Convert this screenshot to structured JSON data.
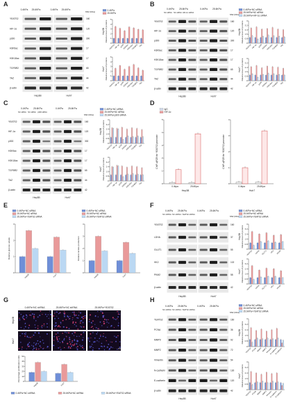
{
  "panel_labels": [
    "A",
    "B",
    "C",
    "D",
    "E",
    "F",
    "G",
    "H"
  ],
  "A": {
    "conditions": [
      "0.4KPa",
      "25.6KPa",
      "0.4KPa",
      "25.6KPa"
    ],
    "mw_label": "MW (KDa)",
    "rows": [
      "YEATS2",
      "HIF-1α",
      "p300",
      "H3K9ac",
      "H3K18ac",
      "TGFBR2",
      "TAZ",
      "β-actin"
    ],
    "mw": [
      "160",
      "120",
      "300",
      "17",
      "17",
      "65",
      "44",
      "42"
    ],
    "cells": [
      "Hep3B",
      "Huh7"
    ],
    "legend": [
      "0.4KPa",
      "25.6KPa"
    ],
    "ylabel": "Relative level of proteins",
    "xcats": [
      "YEATS2",
      "HIF-1α",
      "p300",
      "H3K9ac",
      "H3K18ac",
      "TGFBR2",
      "TAZ"
    ]
  },
  "B": {
    "groups": [
      "0.4KPa",
      "25.6KPa"
    ],
    "lanes": [
      "NC siRNA",
      "NC siRNA",
      "HIF-1α siRNA"
    ],
    "rows": [
      "YEATS2",
      "HIF-1α",
      "p300",
      "H3K9ac",
      "H3K18ac",
      "TGFBR2",
      "TAZ",
      "β-actin"
    ],
    "mw": [
      "160",
      "120",
      "300",
      "17",
      "17",
      "65",
      "44",
      "42"
    ],
    "cells": [
      "Hep3B",
      "Huh7"
    ],
    "legend": [
      "0.4KPa+NC siRNA",
      "25.6KPa+NC siRNA",
      "25.6KPa+HIF-1α siRNA"
    ],
    "mw_label": "MW (KDa)"
  },
  "C": {
    "groups": [
      "0.4KPa",
      "25.6KPa"
    ],
    "lanes": [
      "NC siRNA",
      "NC siRNA",
      "p300 siRNA"
    ],
    "rows": [
      "YEATS2",
      "HIF-1α",
      "p300",
      "H3K9ac",
      "H3K18ac",
      "TGFBR2",
      "TAZ",
      "β-actin"
    ],
    "mw": [
      "160",
      "120",
      "300",
      "17",
      "17",
      "65",
      "44",
      "42"
    ],
    "cells": [
      "Hep3B",
      "Huh7"
    ],
    "legend": [
      "0.4KPa+NC siRNA",
      "25.6KPa+NC siRNA",
      "25.6KPa+p300 siRNA"
    ],
    "mw_label": "MW (KDa)"
  },
  "D": {
    "legend": [
      "IgG",
      "HIF-1α"
    ],
    "ylabel": "ChIP-qPCR for YEATS2 promoter",
    "xcats": [
      "0.4kpa",
      "25.6Kpa"
    ],
    "cells": [
      "Hep3B",
      "Huh7"
    ]
  },
  "E": {
    "legend": [
      "0.4KPa+NC siRNA",
      "25.6KPa+NC siRNA",
      "25.6KPa+YEATS2 siRNA"
    ],
    "ylabel1": "Relative glucose uptake",
    "ylabel2": "Relative lactate production",
    "xcats": [
      "Hep3B",
      "Huh7"
    ]
  },
  "F": {
    "groups": [
      "0.4KPa",
      "25.6KPa"
    ],
    "lanes": [
      "NC shRNA",
      "NC shRNA",
      "YEATS2 shRNA"
    ],
    "rows": [
      "YEATS2",
      "LDHA",
      "GLUT1",
      "HK2",
      "PKM2",
      "β-actin"
    ],
    "mw": [
      "160",
      "37",
      "55",
      "102",
      "58",
      "42"
    ],
    "cells": [
      "Hep3B",
      "Huh7"
    ],
    "legend": [
      "0.4KPa+NC siRNA",
      "25.6KPa+NC siRNA",
      "25.6KPa+YEATS2 siRNA"
    ],
    "mw_label": "MW (KDa)",
    "xcats": [
      "YEATS2",
      "LDHA",
      "GLUT1",
      "HK2",
      "PKM2"
    ]
  },
  "G": {
    "conditions": [
      "0.4KPa+NC shRNA",
      "25.6KPa+NC shRNA",
      "25.6KPa+YEATS2"
    ],
    "rowlabels": [
      "Hep3B",
      "Huh7"
    ],
    "ylabel": "Percentage proliferation cells",
    "xcats": [
      "Hep3B",
      "Huh7"
    ],
    "legend": [
      "0.4KPa+NC shRNA",
      "25.6KPa+NC shRNA",
      "25.6KPa+YEATS2 siRNA"
    ]
  },
  "H": {
    "groups": [
      "0.4KPa",
      "25.6KPa"
    ],
    "lanes": [
      "NC shRNA",
      "NC shRNA",
      "YEATS2 shRNA"
    ],
    "rows": [
      "YEATS2",
      "PCNA",
      "MMP9",
      "MMP2",
      "Vimentin",
      "N-cadherin",
      "E-cadherin",
      "β-actin"
    ],
    "mw": [
      "160",
      "36",
      "92",
      "72",
      "54",
      "130",
      "120",
      "42"
    ],
    "cells": [
      "Hep3B",
      "Huh7"
    ],
    "legend": [
      "0.4KPa+NC siRNA",
      "25.6KPa+NC siRNA",
      "25.6KPa+YEATS2 siRNA"
    ],
    "mw_label": "MW (KDa)"
  },
  "colors": {
    "blue": "#6f8fd8",
    "red": "#e99a9a",
    "check": "#9ec7ee",
    "band": "#1d1d1d"
  },
  "chart_data": [
    {
      "type": "bar",
      "panel": "A-Hep3B",
      "categories": [
        "YEATS2",
        "HIF-1α",
        "p300",
        "H3K9ac",
        "H3K18ac",
        "TGFBR2",
        "TAZ"
      ],
      "series": [
        {
          "name": "0.4KPa",
          "values": [
            1,
            1,
            1,
            1,
            1,
            1,
            1
          ]
        },
        {
          "name": "25.6KPa",
          "values": [
            3.5,
            3.1,
            2.6,
            3.4,
            3.2,
            2.9,
            2.8
          ]
        }
      ],
      "ylim": [
        0,
        5
      ]
    },
    {
      "type": "bar",
      "panel": "A-Huh7",
      "categories": [
        "YEATS2",
        "HIF-1α",
        "p300",
        "H3K9ac",
        "H3K18ac",
        "TGFBR2",
        "TAZ"
      ],
      "series": [
        {
          "name": "0.4KPa",
          "values": [
            1,
            1,
            1,
            1,
            1,
            1,
            1
          ]
        },
        {
          "name": "25.6KPa",
          "values": [
            2.6,
            3.2,
            2.4,
            3.0,
            3.4,
            2.7,
            2.2
          ]
        }
      ],
      "ylim": [
        0,
        5
      ]
    },
    {
      "type": "bar",
      "panel": "B-Hep3B",
      "categories": [
        "YEATS2",
        "HIF-1α",
        "p300",
        "H3K9ac",
        "H3K18ac",
        "TGFBR2",
        "TAZ"
      ],
      "series": [
        {
          "name": "0.4KPa+NC siRNA",
          "values": [
            1,
            1,
            1,
            1,
            1,
            1,
            1
          ]
        },
        {
          "name": "25.6KPa+NC siRNA",
          "values": [
            2.7,
            2.9,
            2.5,
            2.6,
            2.8,
            2.5,
            2.4
          ]
        },
        {
          "name": "25.6KPa+HIF-1α siRNA",
          "values": [
            1.3,
            0.7,
            1.2,
            1.4,
            1.3,
            1.2,
            1.1
          ]
        }
      ],
      "ylim": [
        0,
        4
      ]
    },
    {
      "type": "bar",
      "panel": "B-Huh7",
      "categories": [
        "YEATS2",
        "HIF-1α",
        "p300",
        "H3K9ac",
        "H3K18ac",
        "TGFBR2",
        "TAZ"
      ],
      "series": [
        {
          "name": "0.4KPa+NC siRNA",
          "values": [
            1,
            1,
            1,
            1,
            1,
            1,
            1
          ]
        },
        {
          "name": "25.6KPa+NC siRNA",
          "values": [
            2.5,
            2.7,
            2.3,
            2.6,
            2.5,
            2.4,
            2.2
          ]
        },
        {
          "name": "25.6KPa+HIF-1α siRNA",
          "values": [
            1.2,
            0.6,
            1.1,
            1.3,
            1.2,
            1.1,
            1.0
          ]
        }
      ],
      "ylim": [
        0,
        4
      ]
    },
    {
      "type": "bar",
      "panel": "C-Hep3B",
      "categories": [
        "YEATS2",
        "HIF-1α",
        "p300",
        "H3K9ac",
        "H3K18ac",
        "TGFBR2",
        "TAZ"
      ],
      "series": [
        {
          "name": "0.4KPa+NC siRNA",
          "values": [
            1,
            1,
            1,
            1,
            1,
            1,
            1
          ]
        },
        {
          "name": "25.6KPa+NC siRNA",
          "values": [
            2.6,
            2.5,
            2.7,
            2.4,
            2.6,
            2.5,
            2.3
          ]
        },
        {
          "name": "25.6KPa+p300 siRNA",
          "values": [
            2.5,
            2.4,
            0.6,
            1.2,
            1.1,
            1.2,
            1.1
          ]
        }
      ],
      "ylim": [
        0,
        4
      ]
    },
    {
      "type": "bar",
      "panel": "C-Huh7",
      "categories": [
        "YEATS2",
        "HIF-1α",
        "p300",
        "H3K9ac",
        "H3K18ac",
        "TGFBR2",
        "TAZ"
      ],
      "series": [
        {
          "name": "0.4KPa+NC siRNA",
          "values": [
            1,
            1,
            1,
            1,
            1,
            1,
            1
          ]
        },
        {
          "name": "25.6KPa+NC siRNA",
          "values": [
            2.4,
            2.6,
            2.5,
            2.3,
            2.5,
            2.4,
            2.2
          ]
        },
        {
          "name": "25.6KPa+p300 siRNA",
          "values": [
            2.3,
            2.5,
            0.7,
            1.1,
            1.2,
            1.1,
            1.0
          ]
        }
      ],
      "ylim": [
        0,
        4
      ]
    },
    {
      "type": "bar",
      "panel": "D-Hep3B",
      "categories": [
        "0.4kpa",
        "25.6Kpa"
      ],
      "series": [
        {
          "name": "IgG",
          "values": [
            0.1,
            0.1
          ]
        },
        {
          "name": "HIF-1α",
          "values": [
            1.1,
            3.9
          ]
        }
      ],
      "ylim": [
        0,
        5
      ]
    },
    {
      "type": "bar",
      "panel": "D-Huh7",
      "categories": [
        "0.4kpa",
        "25.6Kpa"
      ],
      "series": [
        {
          "name": "IgG",
          "values": [
            0.1,
            0.1
          ]
        },
        {
          "name": "HIF-1α",
          "values": [
            1.0,
            3.3
          ]
        }
      ],
      "ylim": [
        0,
        4
      ]
    },
    {
      "type": "bar",
      "panel": "E-glucose",
      "categories": [
        "Hep3B",
        "Huh7"
      ],
      "series": [
        {
          "name": "0.4KPa+NC siRNA",
          "values": [
            1,
            1
          ]
        },
        {
          "name": "25.6KPa+NC siRNA",
          "values": [
            2.6,
            2.2
          ]
        },
        {
          "name": "25.6KPa+YEATS2 siRNA",
          "values": [
            1.5,
            1.4
          ]
        }
      ],
      "ylim": [
        0,
        3
      ]
    },
    {
      "type": "bar",
      "panel": "E-lactate",
      "categories": [
        "Hep3B",
        "Huh7"
      ],
      "series": [
        {
          "name": "0.4KPa+NC siRNA",
          "values": [
            1,
            1
          ]
        },
        {
          "name": "25.6KPa+NC siRNA",
          "values": [
            3.0,
            2.5
          ]
        },
        {
          "name": "25.6KPa+YEATS2 siRNA",
          "values": [
            1.8,
            1.6
          ]
        }
      ],
      "ylim": [
        0,
        4
      ]
    },
    {
      "type": "bar",
      "panel": "F-Hep3B",
      "categories": [
        "YEATS2",
        "LDHA",
        "GLUT1",
        "HK2",
        "PKM2"
      ],
      "series": [
        {
          "name": "0.4KPa+NC siRNA",
          "values": [
            1,
            1,
            1,
            1,
            1
          ]
        },
        {
          "name": "25.6KPa+NC siRNA",
          "values": [
            2.8,
            2.4,
            2.6,
            2.2,
            2.3
          ]
        },
        {
          "name": "25.6KPa+YEATS2 siRNA",
          "values": [
            0.6,
            1.2,
            1.3,
            1.1,
            1.2
          ]
        }
      ],
      "ylim": [
        0,
        4
      ]
    },
    {
      "type": "bar",
      "panel": "F-Huh7",
      "categories": [
        "YEATS2",
        "LDHA",
        "GLUT1",
        "HK2",
        "PKM2"
      ],
      "series": [
        {
          "name": "0.4KPa+NC siRNA",
          "values": [
            1,
            1,
            1,
            1,
            1
          ]
        },
        {
          "name": "25.6KPa+NC siRNA",
          "values": [
            2.9,
            2.2,
            2.5,
            2.4,
            2.1
          ]
        },
        {
          "name": "25.6KPa+YEATS2 siRNA",
          "values": [
            0.7,
            1.1,
            1.2,
            1.2,
            1.0
          ]
        }
      ],
      "ylim": [
        0,
        4
      ]
    },
    {
      "type": "bar",
      "panel": "G",
      "categories": [
        "Hep3B",
        "Huh7"
      ],
      "series": [
        {
          "name": "0.4KPa+NC shRNA",
          "values": [
            18,
            16
          ]
        },
        {
          "name": "25.6KPa+NC shRNA",
          "values": [
            38,
            34
          ]
        },
        {
          "name": "25.6KPa+YEATS2 siRNA",
          "values": [
            20,
            18
          ]
        }
      ],
      "ylim": [
        0,
        50
      ]
    },
    {
      "type": "bar",
      "panel": "H-Hep3B",
      "categories": [
        "YEATS2",
        "PCNA",
        "MMP9",
        "MMP2",
        "Vimentin",
        "N-cadherin",
        "E-cadherin"
      ],
      "series": [
        {
          "name": "0.4KPa+NC siRNA",
          "values": [
            1,
            1,
            1,
            1,
            1,
            1,
            1
          ]
        },
        {
          "name": "25.6KPa+NC siRNA",
          "values": [
            2.7,
            2.3,
            2.5,
            2.2,
            2.4,
            2.6,
            0.5
          ]
        },
        {
          "name": "25.6KPa+YEATS2 siRNA",
          "values": [
            0.6,
            1.2,
            1.1,
            1.2,
            1.1,
            1.2,
            0.9
          ]
        }
      ],
      "ylim": [
        0,
        4
      ]
    },
    {
      "type": "bar",
      "panel": "H-Huh7",
      "categories": [
        "YEATS2",
        "PCNA",
        "MMP9",
        "MMP2",
        "Vimentin",
        "N-cadherin",
        "E-cadherin"
      ],
      "series": [
        {
          "name": "0.4KPa+NC siRNA",
          "values": [
            1,
            1,
            1,
            1,
            1,
            1,
            1
          ]
        },
        {
          "name": "25.6KPa+NC siRNA",
          "values": [
            2.6,
            2.4,
            2.2,
            2.5,
            2.3,
            2.4,
            0.6
          ]
        },
        {
          "name": "25.6KPa+YEATS2 siRNA",
          "values": [
            0.7,
            1.1,
            1.2,
            1.0,
            1.2,
            1.1,
            0.9
          ]
        }
      ],
      "ylim": [
        0,
        4
      ]
    }
  ]
}
